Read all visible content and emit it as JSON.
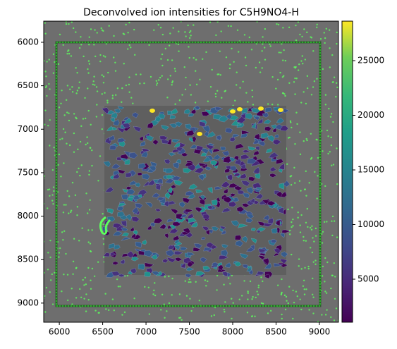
{
  "chart_data": {
    "type": "image",
    "title": "Deconvolved ion intensities for C5H9NO4-H",
    "xlim": [
      5820,
      9220
    ],
    "ylim": [
      5757,
      9220
    ],
    "y_inverted": true,
    "xticks": [
      6000,
      6500,
      7000,
      7500,
      8000,
      8500,
      9000
    ],
    "yticks": [
      6000,
      6500,
      7000,
      7500,
      8000,
      8500,
      9000
    ],
    "colorbar": {
      "cmap": "viridis",
      "lim": [
        1065,
        28613
      ],
      "ticks": [
        5000,
        10000,
        15000,
        20000,
        25000
      ]
    }
  }
}
